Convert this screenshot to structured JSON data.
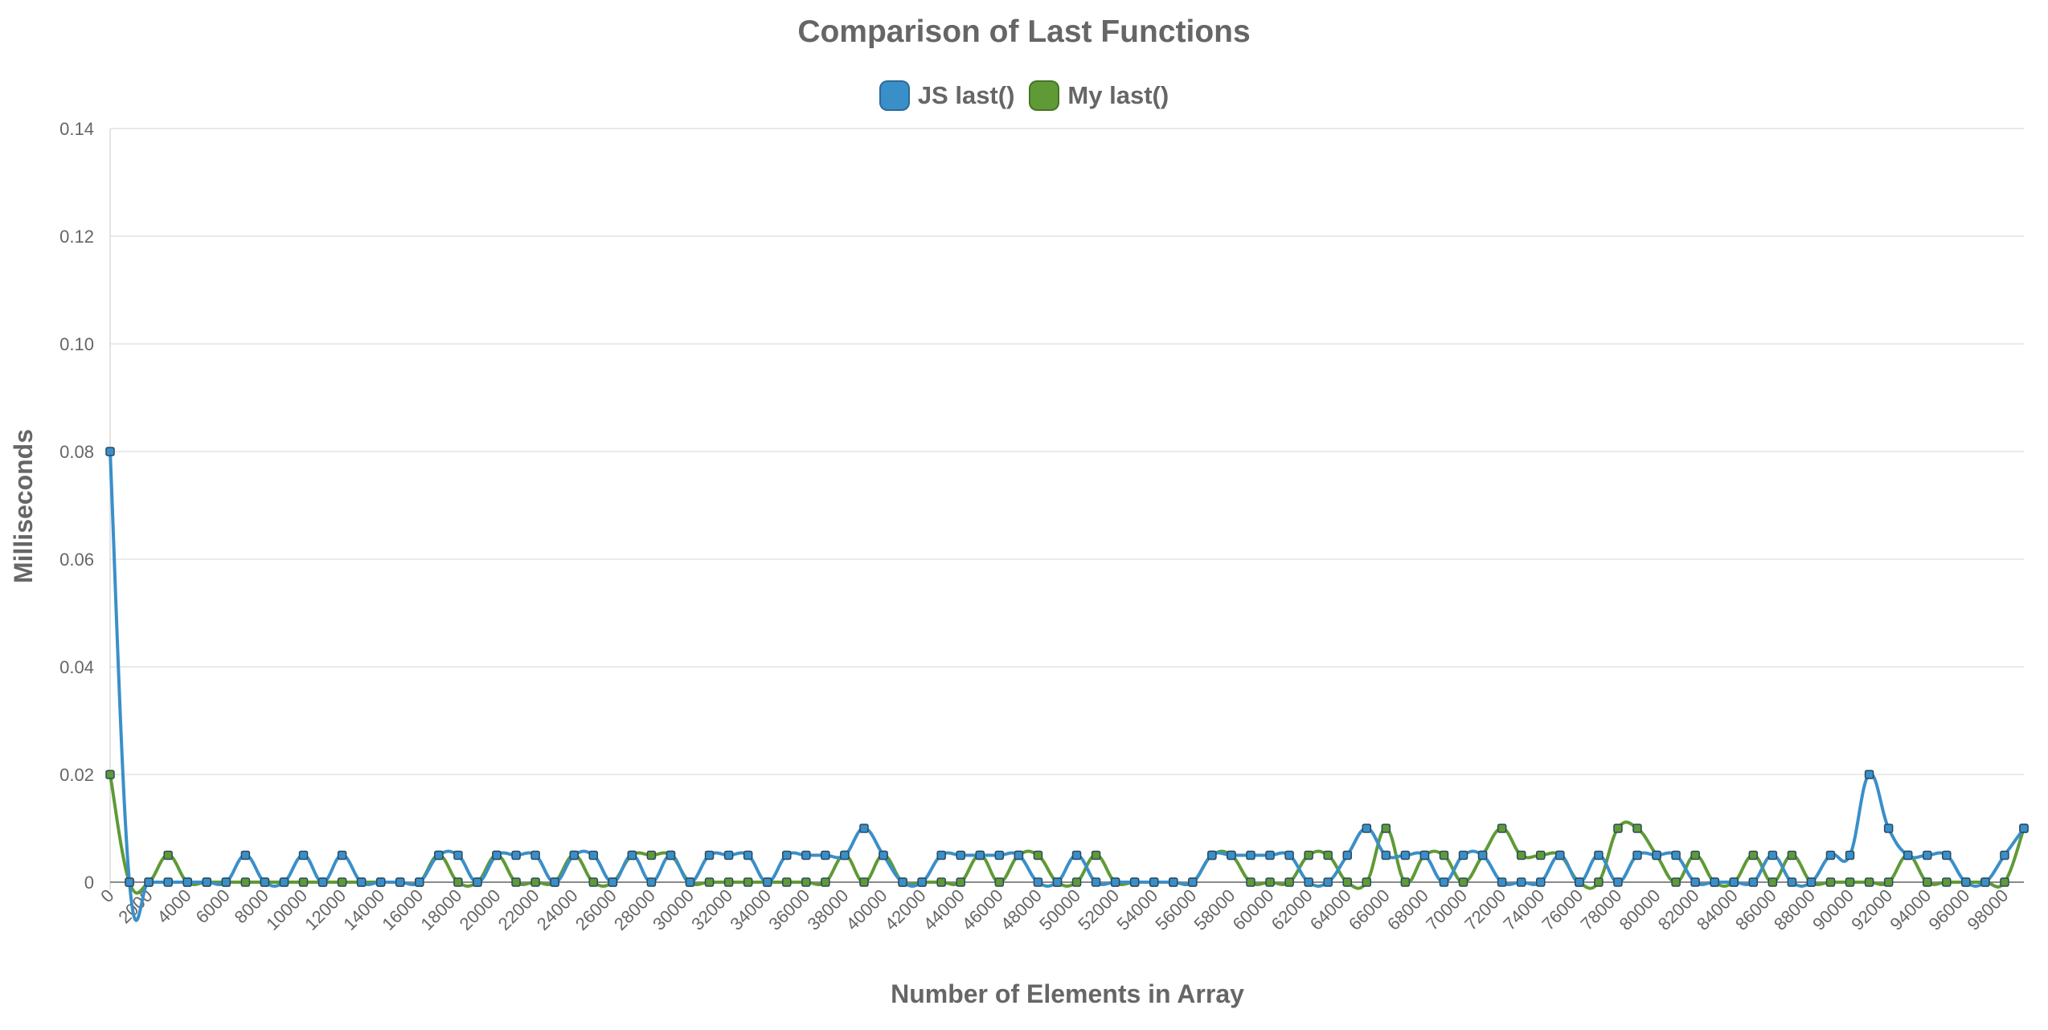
{
  "chart_data": {
    "type": "line",
    "title": "Comparison of Last Functions",
    "xlabel": "Number of Elements in Array",
    "ylabel": "Milliseconds",
    "ylim": [
      0,
      0.14
    ],
    "y_ticks": [
      "0",
      "0.02",
      "0.04",
      "0.06",
      "0.08",
      "0.10",
      "0.12",
      "0.14"
    ],
    "grid": true,
    "legend_position": "top-center",
    "x": [
      0,
      1000,
      2000,
      3000,
      4000,
      5000,
      6000,
      7000,
      8000,
      9000,
      10000,
      11000,
      12000,
      13000,
      14000,
      15000,
      16000,
      17000,
      18000,
      19000,
      20000,
      21000,
      22000,
      23000,
      24000,
      25000,
      26000,
      27000,
      28000,
      29000,
      30000,
      31000,
      32000,
      33000,
      34000,
      35000,
      36000,
      37000,
      38000,
      39000,
      40000,
      41000,
      42000,
      43000,
      44000,
      45000,
      46000,
      47000,
      48000,
      49000,
      50000,
      51000,
      52000,
      53000,
      54000,
      55000,
      56000,
      57000,
      58000,
      59000,
      60000,
      61000,
      62000,
      63000,
      64000,
      65000,
      66000,
      67000,
      68000,
      69000,
      70000,
      71000,
      72000,
      73000,
      74000,
      75000,
      76000,
      77000,
      78000,
      79000,
      80000,
      81000,
      82000,
      83000,
      84000,
      85000,
      86000,
      87000,
      88000,
      89000,
      90000,
      91000,
      92000,
      93000,
      94000,
      95000,
      96000,
      97000,
      98000,
      99000
    ],
    "x_tick_labels": [
      "0",
      "2000",
      "4000",
      "6000",
      "8000",
      "10000",
      "12000",
      "14000",
      "16000",
      "18000",
      "20000",
      "22000",
      "24000",
      "26000",
      "28000",
      "30000",
      "32000",
      "34000",
      "36000",
      "38000",
      "40000",
      "42000",
      "44000",
      "46000",
      "48000",
      "50000",
      "52000",
      "54000",
      "56000",
      "58000",
      "60000",
      "62000",
      "64000",
      "66000",
      "68000",
      "70000",
      "72000",
      "74000",
      "76000",
      "78000",
      "80000",
      "82000",
      "84000",
      "86000",
      "88000",
      "90000",
      "92000",
      "94000",
      "96000",
      "98000"
    ],
    "series": [
      {
        "name": "JS last()",
        "color": "#3a8fc9",
        "values": [
          0.08,
          0,
          0,
          0,
          0,
          0,
          0,
          0.005,
          0,
          0,
          0.005,
          0,
          0.005,
          0,
          0,
          0,
          0,
          0.005,
          0.005,
          0,
          0.005,
          0.005,
          0.005,
          0,
          0.005,
          0.005,
          0,
          0.005,
          0,
          0.005,
          0,
          0.005,
          0.005,
          0.005,
          0,
          0.005,
          0.005,
          0.005,
          0.005,
          0.01,
          0.005,
          0,
          0,
          0.005,
          0.005,
          0.005,
          0.005,
          0.005,
          0,
          0,
          0.005,
          0,
          0,
          0,
          0,
          0,
          0,
          0.005,
          0.005,
          0.005,
          0.005,
          0.005,
          0,
          0,
          0.005,
          0.01,
          0.005,
          0.005,
          0.005,
          0,
          0.005,
          0.005,
          0,
          0,
          0,
          0.005,
          0,
          0.005,
          0,
          0.005,
          0.005,
          0.005,
          0,
          0,
          0,
          0,
          0.005,
          0,
          0,
          0.005,
          0.005,
          0.02,
          0.01,
          0.005,
          0.005,
          0.005,
          0,
          0,
          0.005,
          0.01
        ]
      },
      {
        "name": "My last()",
        "color": "#5f9a36",
        "values": [
          0.02,
          0,
          0,
          0.005,
          0,
          0,
          0,
          0,
          0,
          0,
          0,
          0,
          0,
          0,
          0,
          0,
          0,
          0.005,
          0,
          0,
          0.005,
          0,
          0,
          0,
          0.005,
          0,
          0,
          0.005,
          0.005,
          0.005,
          0,
          0,
          0,
          0,
          0,
          0,
          0,
          0,
          0.005,
          0,
          0.005,
          0,
          0,
          0,
          0,
          0.005,
          0,
          0.005,
          0.005,
          0,
          0,
          0.005,
          0,
          0,
          0,
          0,
          0,
          0.005,
          0.005,
          0,
          0,
          0,
          0.005,
          0.005,
          0,
          0,
          0.01,
          0,
          0.005,
          0.005,
          0,
          0.005,
          0.01,
          0.005,
          0.005,
          0.005,
          0,
          0,
          0.01,
          0.01,
          0.005,
          0,
          0.005,
          0,
          0,
          0.005,
          0,
          0.005,
          0,
          0,
          0,
          0,
          0,
          0.005,
          0,
          0,
          0,
          0,
          0,
          0.01
        ]
      }
    ]
  }
}
